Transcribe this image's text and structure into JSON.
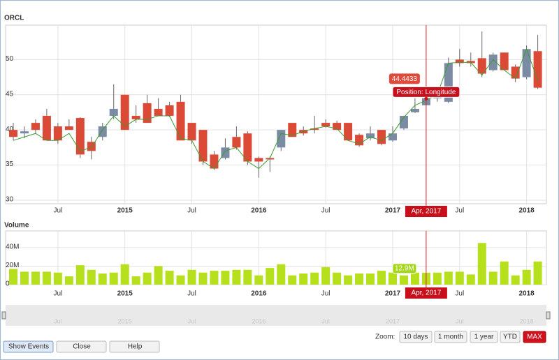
{
  "chart_data": {
    "type": "candlestick",
    "title": "ORCL",
    "x": [
      "2014-03",
      "2014-04",
      "2014-05",
      "2014-06",
      "2014-07",
      "2014-08",
      "2014-09",
      "2014-10",
      "2014-11",
      "2014-12",
      "2015-01",
      "2015-02",
      "2015-03",
      "2015-04",
      "2015-05",
      "2015-06",
      "2015-07",
      "2015-08",
      "2015-09",
      "2015-10",
      "2015-11",
      "2015-12",
      "2016-01",
      "2016-02",
      "2016-03",
      "2016-04",
      "2016-05",
      "2016-06",
      "2016-07",
      "2016-08",
      "2016-09",
      "2016-10",
      "2016-11",
      "2016-12",
      "2017-01",
      "2017-02",
      "2017-03",
      "2017-04",
      "2017-05",
      "2017-06",
      "2017-07",
      "2017-08",
      "2017-09",
      "2017-10",
      "2017-11",
      "2017-12",
      "2018-01",
      "2018-02"
    ],
    "open": [
      40,
      39.5,
      41,
      42,
      40.5,
      40.5,
      41.7,
      38.3,
      39,
      42,
      45,
      42,
      43.8,
      43,
      43.5,
      44,
      41,
      40,
      36.5,
      36,
      39,
      39.5,
      36,
      36,
      37.5,
      41,
      40,
      40.2,
      41,
      41,
      41,
      39.3,
      38.8,
      40,
      38.5,
      40.2,
      42.5,
      43.5,
      44.5,
      44,
      50,
      49.8,
      50.2,
      48.5,
      51,
      49,
      47.5,
      51.2
    ],
    "high": [
      41,
      40.5,
      41.5,
      43,
      41,
      41.5,
      41.8,
      39,
      41,
      46.5,
      45,
      43.5,
      45,
      44.5,
      44,
      45,
      41,
      40,
      37,
      38.8,
      40.5,
      39.8,
      36.2,
      36.2,
      40,
      41,
      40.5,
      42,
      41.5,
      41.3,
      41,
      39.5,
      40.5,
      40,
      40.5,
      42,
      44.5,
      45.5,
      46,
      50.3,
      51.5,
      51,
      54,
      51,
      51,
      49.3,
      52,
      53.5
    ],
    "low": [
      38.5,
      38.8,
      39.5,
      38.5,
      38,
      40,
      36,
      35.8,
      38.5,
      41.5,
      40,
      41,
      41,
      42,
      41.8,
      38.5,
      38,
      35,
      34.3,
      35.8,
      37.2,
      35,
      33.2,
      34,
      37,
      39,
      39.2,
      39.5,
      40.3,
      40,
      38.5,
      37.6,
      38.5,
      37.8,
      38.3,
      40,
      42.4,
      43.5,
      44,
      43.8,
      49,
      49,
      47.5,
      48.3,
      48.5,
      46.8,
      47.2,
      45.8
    ],
    "close": [
      39,
      39.8,
      40,
      38.5,
      38.5,
      40,
      36.5,
      37,
      40.5,
      43,
      40,
      41.5,
      41,
      42,
      42,
      38.5,
      38.5,
      35.5,
      34.5,
      37.5,
      37.5,
      35.5,
      35.5,
      35.8,
      40,
      39,
      39.5,
      40,
      40.5,
      40,
      38.5,
      37.8,
      39.5,
      38,
      39.5,
      42,
      43,
      44.5,
      45,
      49.5,
      49.5,
      49.5,
      48,
      50.7,
      48.5,
      47.3,
      51.5,
      46
    ],
    "up_color": "#7b8ba3",
    "down_color": "#db4a36",
    "line": {
      "color": "#3d9a2e",
      "values": [
        38.5,
        39,
        39.5,
        38.5,
        38.5,
        39.5,
        37,
        37.5,
        40,
        42,
        40.5,
        41.5,
        41.5,
        42,
        42,
        38.8,
        38.5,
        35.5,
        34.5,
        37,
        37.5,
        35.5,
        34.5,
        36,
        39.5,
        39.2,
        39.8,
        40.2,
        40.5,
        40.2,
        38.5,
        38,
        39,
        38.5,
        39.5,
        41.8,
        43.5,
        44.2,
        45,
        49.5,
        49.6,
        49.6,
        47.8,
        50,
        48.5,
        47.3,
        51.5,
        47
      ]
    },
    "ylim": [
      29.5,
      54.9
    ],
    "yticks": [
      30,
      35,
      40,
      45,
      50
    ],
    "grid": true,
    "xticks": [
      {
        "value": "2014-07",
        "label": "Jul"
      },
      {
        "value": "2015-01",
        "label": "2015"
      },
      {
        "value": "2015-07",
        "label": "Jul"
      },
      {
        "value": "2016-01",
        "label": "2016"
      },
      {
        "value": "2016-07",
        "label": "Jul"
      },
      {
        "value": "2017-01",
        "label": "2017"
      },
      {
        "value": "2017-07",
        "label": "Jul"
      },
      {
        "value": "2018-01",
        "label": "2018"
      }
    ],
    "volume": {
      "title": "Volume",
      "type": "bar",
      "color": "#b5e01b",
      "values": [
        17000000,
        14000000,
        14000000,
        14000000,
        13000000,
        9000000,
        21000000,
        16000000,
        12000000,
        13000000,
        22000000,
        9000000,
        13000000,
        20000000,
        15000000,
        10000000,
        16000000,
        13000000,
        15000000,
        15000000,
        16000000,
        16000000,
        10000000,
        18000000,
        22000000,
        10000000,
        12000000,
        13000000,
        19000000,
        13000000,
        10000000,
        12000000,
        12000000,
        15000000,
        13000000,
        10000000,
        13000000,
        12900000,
        13000000,
        14000000,
        14000000,
        11000000,
        45000000,
        14000000,
        25000000,
        10000000,
        16000000,
        25000000
      ],
      "ylim": [
        0,
        58000000
      ],
      "yticks": [
        0,
        {
          "value": 20000000,
          "label": "20M"
        },
        {
          "value": 40000000,
          "label": "40M"
        }
      ]
    },
    "crosshair": {
      "x": "2017-04",
      "x_label": "Apr, 2017",
      "price": 44.4433,
      "tooltip": "Position: Longitude",
      "volume": 12900000,
      "volume_label": "12.9M"
    },
    "zoom": {
      "label": "Zoom:",
      "buttons": [
        "10 days",
        "1 month",
        "1 year",
        "YTD",
        "MAX"
      ],
      "selected": 4
    },
    "buttons": [
      "Show Events",
      "Close",
      "Help"
    ]
  }
}
